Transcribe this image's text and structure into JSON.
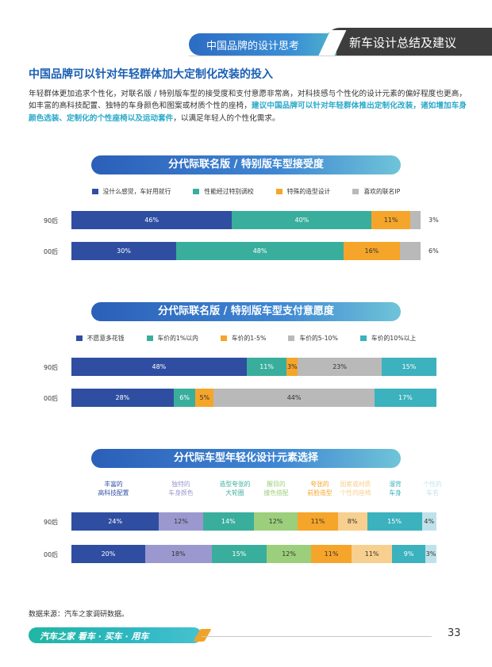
{
  "header": {
    "section_label": "中国品牌的设计思考",
    "chapter_label": "新车设计总结及建议"
  },
  "main_title": "中国品牌可以针对年轻群体加大定制化改装的投入",
  "intro": {
    "normal": "年轻群体更加追求个性化，对联名版 / 特别版车型的接受度和支付意愿非常高，对科技感与个性化的设计元素的偏好程度也更高，如丰富的高科技配置、独特的车身颜色和图案或材质个性的座椅，",
    "highlight": "建议中国品牌可以针对年轻群体推出定制化改装，诸如增加车身颜色选装、定制化的个性座椅以及运动套件",
    "tail": "，以满足年轻人的个性化需求。"
  },
  "chart_data": [
    {
      "type": "bar",
      "title": "分代际联名版 / 特别版车型接受度",
      "categories": [
        "90后",
        "00后"
      ],
      "series": [
        {
          "name": "没什么感觉，车好用就行",
          "color": "#2f4ea2",
          "values": [
            46,
            30
          ]
        },
        {
          "name": "性能经过特别调校",
          "color": "#3aae9c",
          "values": [
            40,
            48
          ]
        },
        {
          "name": "特殊的造型设计",
          "color": "#f5a52a",
          "values": [
            11,
            16
          ]
        },
        {
          "name": "喜欢的联名IP",
          "color": "#b9b9b9",
          "values": [
            3,
            6
          ]
        }
      ],
      "labels": [
        [
          "46%",
          "40%",
          "11%",
          "3%"
        ],
        [
          "30%",
          "48%",
          "16%",
          "6%"
        ]
      ]
    },
    {
      "type": "bar",
      "title": "分代际联名版 / 特别版车型支付意愿度",
      "categories": [
        "90后",
        "00后"
      ],
      "series": [
        {
          "name": "不愿意多花钱",
          "color": "#2f4ea2",
          "values": [
            48,
            28
          ]
        },
        {
          "name": "车价的1%以内",
          "color": "#3aae9c",
          "values": [
            11,
            6
          ]
        },
        {
          "name": "车价的1-5%",
          "color": "#f5a52a",
          "values": [
            3,
            5
          ]
        },
        {
          "name": "车价的5-10%",
          "color": "#b9b9b9",
          "values": [
            23,
            44
          ]
        },
        {
          "name": "车价的10%以上",
          "color": "#3bb2bd",
          "values": [
            15,
            17
          ]
        }
      ],
      "labels": [
        [
          "48%",
          "11%",
          "3%",
          "23%",
          "15%"
        ],
        [
          "28%",
          "6%",
          "5%",
          "44%",
          "17%"
        ]
      ]
    },
    {
      "type": "bar",
      "title": "分代际车型年轻化设计元素选择",
      "categories": [
        "90后",
        "00后"
      ],
      "series": [
        {
          "name": "丰富的\n高科技配置",
          "color": "#2f4ea2",
          "values": [
            24,
            20
          ]
        },
        {
          "name": "独特的\n车身颜色",
          "color": "#9a98cf",
          "values": [
            12,
            18
          ]
        },
        {
          "name": "造型夸张的\n大轮圈",
          "color": "#3aae9c",
          "values": [
            14,
            15
          ]
        },
        {
          "name": "醒目的\n撞色搭配",
          "color": "#9ccf7c",
          "values": [
            12,
            12
          ]
        },
        {
          "name": "夸张的\n前脸造型",
          "color": "#f5a52a",
          "values": [
            11,
            11
          ]
        },
        {
          "name": "图案或材质\n个性的座椅",
          "color": "#f7cf8f",
          "values": [
            8,
            11
          ]
        },
        {
          "name": "溜背\n车身",
          "color": "#3bb2bd",
          "values": [
            15,
            9
          ]
        },
        {
          "name": "个性的\n车名",
          "color": "#bfe2ea",
          "values": [
            4,
            3
          ]
        }
      ],
      "labels": [
        [
          "24%",
          "12%",
          "14%",
          "12%",
          "11%",
          "8%",
          "15%",
          "4%"
        ],
        [
          "20%",
          "18%",
          "15%",
          "12%",
          "11%",
          "11%",
          "9%",
          "3%"
        ]
      ]
    }
  ],
  "source": "数据来源：汽车之家调研数据。",
  "footer": {
    "brand": "汽车之家 看车 · 买车 · 用车",
    "page_number": "33"
  }
}
